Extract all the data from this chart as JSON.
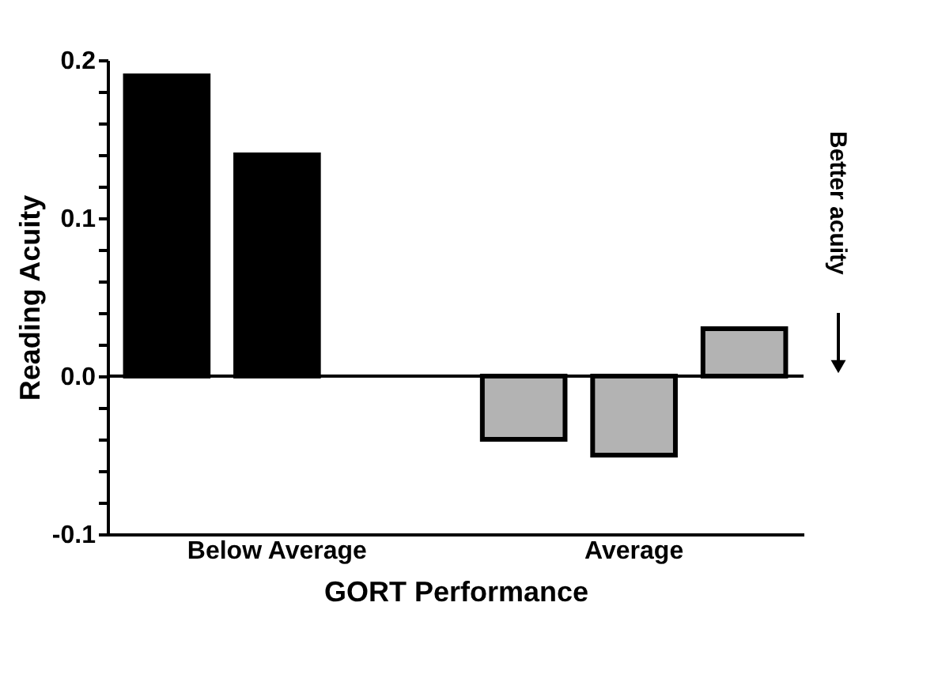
{
  "chart_data": {
    "type": "bar",
    "xlabel": "GORT Performance",
    "ylabel": "Reading Acuity",
    "categories": [
      "Below Average",
      "Average"
    ],
    "series": [
      {
        "colors": [
          "#000000",
          "#b3b3b3"
        ],
        "values": [
          0.19,
          -0.04
        ]
      },
      {
        "colors": [
          "#000000",
          "#b3b3b3"
        ],
        "values": [
          0.14,
          -0.05
        ]
      },
      {
        "colors": [
          "#000000",
          "#b3b3b3"
        ],
        "values": [
          null,
          0.03
        ]
      }
    ],
    "ylim": [
      -0.1,
      0.2
    ],
    "yticks": [
      {
        "value": -0.1,
        "label": "-0.1"
      },
      {
        "value": -0.08,
        "label": null
      },
      {
        "value": -0.06,
        "label": null
      },
      {
        "value": -0.04,
        "label": null
      },
      {
        "value": -0.02,
        "label": null
      },
      {
        "value": 0,
        "label": "0.0"
      },
      {
        "value": 0.02,
        "label": null
      },
      {
        "value": 0.04,
        "label": null
      },
      {
        "value": 0.06,
        "label": null
      },
      {
        "value": 0.08,
        "label": null
      },
      {
        "value": 0.1,
        "label": "0.1"
      },
      {
        "value": 0.12,
        "label": null
      },
      {
        "value": 0.14,
        "label": null
      },
      {
        "value": 0.16,
        "label": null
      },
      {
        "value": 0.18,
        "label": null
      },
      {
        "value": 0.2,
        "label": "0.2"
      }
    ],
    "ref_lines": [
      {
        "axis": "y",
        "value": 0
      }
    ],
    "annotations": [
      "Better acuity"
    ],
    "grid": false
  }
}
